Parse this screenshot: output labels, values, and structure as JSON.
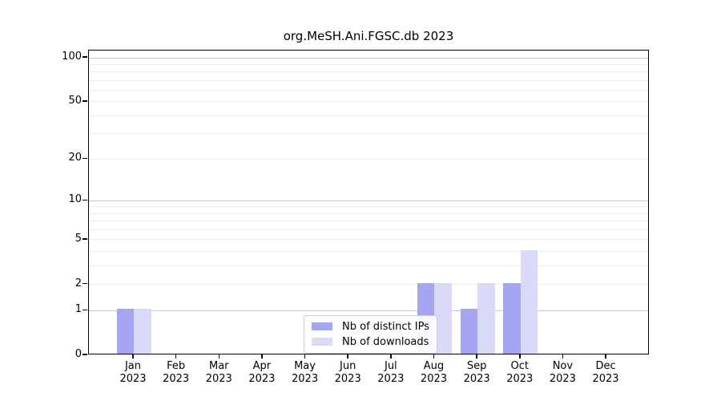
{
  "chart_data": {
    "type": "bar",
    "title": "org.MeSH.Ani.FGSC.db 2023",
    "months": [
      "Jan",
      "Feb",
      "Mar",
      "Apr",
      "May",
      "Jun",
      "Jul",
      "Aug",
      "Sep",
      "Oct",
      "Nov",
      "Dec"
    ],
    "year": "2023",
    "series": [
      {
        "name": "Nb of distinct IPs",
        "slug": "distinct-ips",
        "color": "#a5a5f2",
        "values": [
          1,
          0,
          0,
          0,
          0,
          0,
          0,
          2,
          1,
          2,
          0,
          0
        ]
      },
      {
        "name": "Nb of downloads",
        "slug": "downloads",
        "color": "#d9d9f8",
        "values": [
          1,
          0,
          0,
          0,
          0,
          0,
          0,
          2,
          2,
          4,
          0,
          0
        ]
      }
    ],
    "yscale": "log1p",
    "ylim": [
      0,
      112
    ],
    "yticks": [
      0,
      1,
      2,
      5,
      10,
      20,
      50,
      100
    ],
    "gridlines_major": [
      1,
      10,
      100
    ],
    "gridlines_minor": [
      2,
      3,
      4,
      5,
      6,
      7,
      8,
      9,
      20,
      30,
      40,
      50,
      60,
      70,
      80,
      90
    ],
    "grid": "on",
    "legend_position": "bottom-center",
    "xlabel": "",
    "ylabel": ""
  },
  "colors": {
    "grid_major": "#c9c9c9",
    "grid_minor": "#ececec",
    "spine": "#000000",
    "text": "#000000",
    "background": "#ffffff"
  }
}
